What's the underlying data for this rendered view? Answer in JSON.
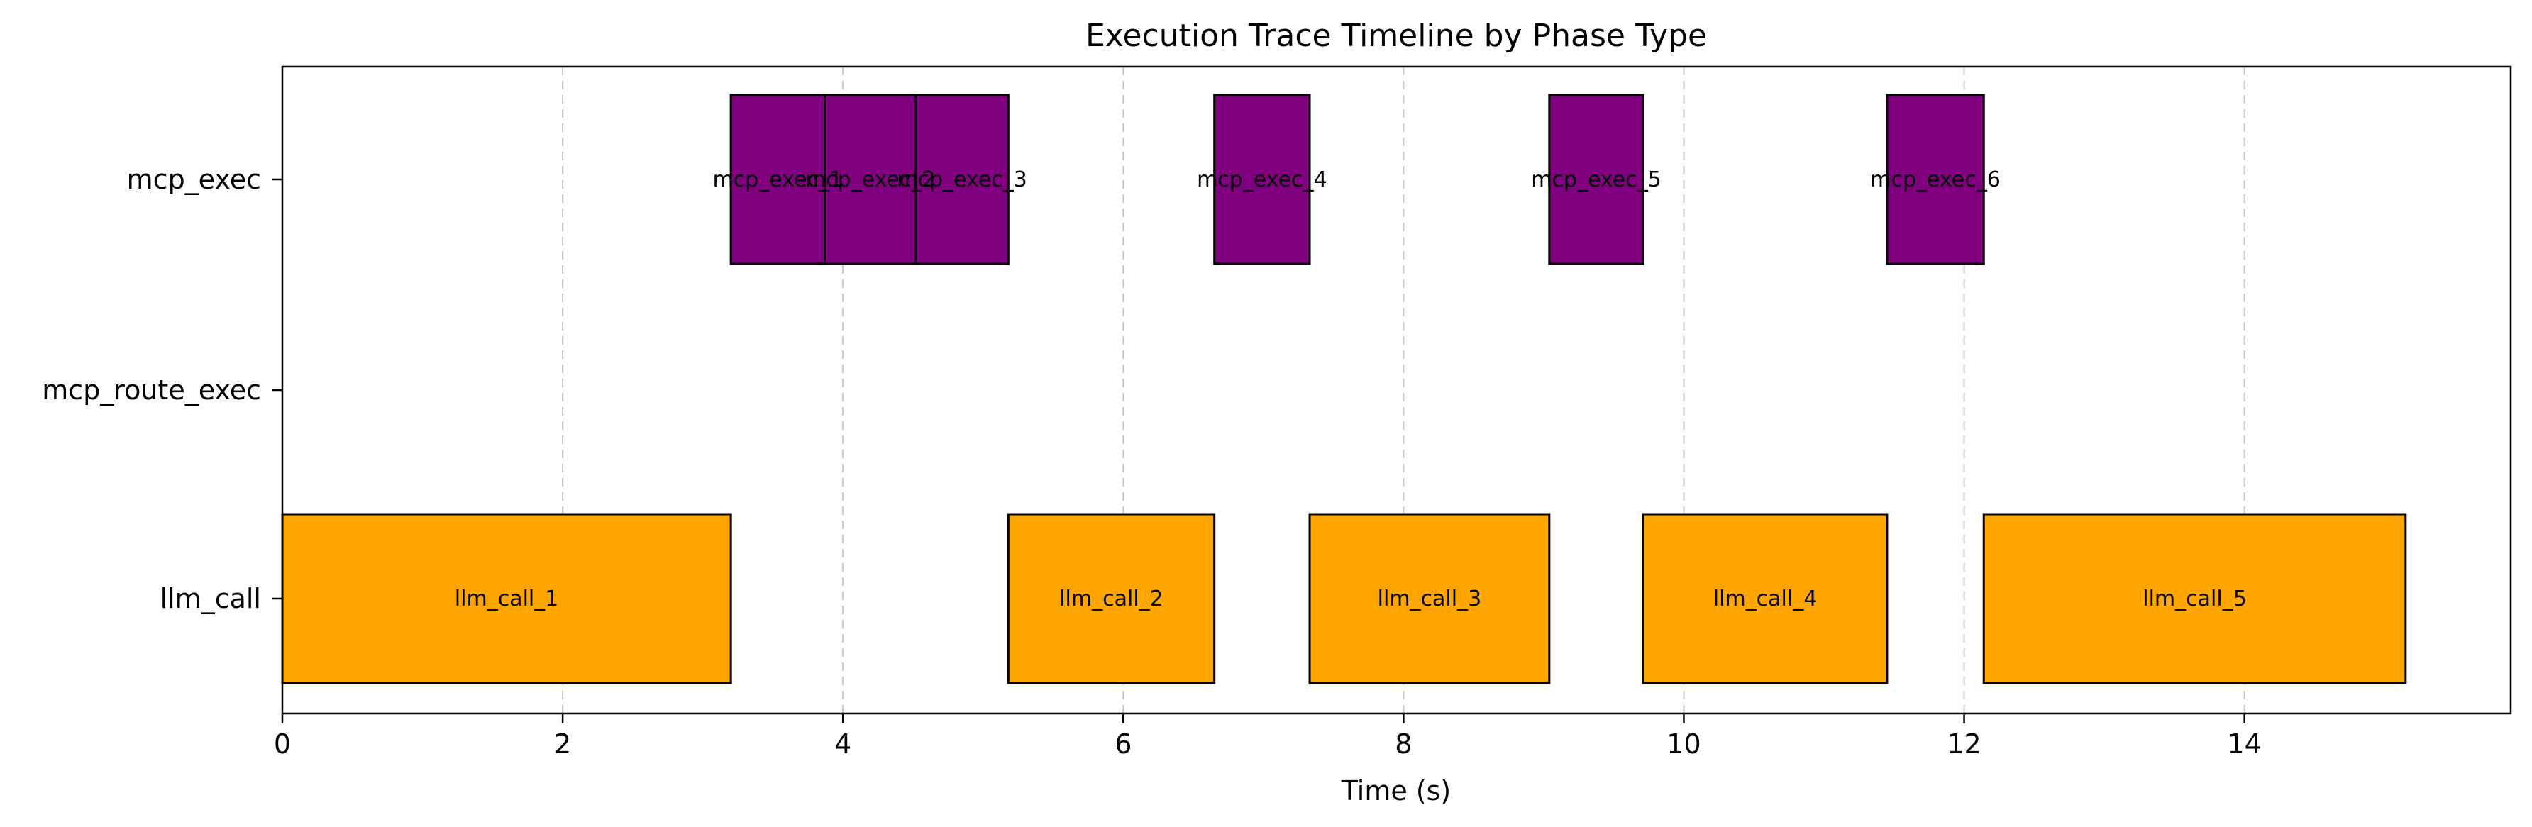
{
  "chart_data": {
    "type": "timeline",
    "title": "Execution Trace Timeline by Phase Type",
    "xlabel": "Time (s)",
    "ylabel": "",
    "xlim": [
      0,
      15.9
    ],
    "xticks": [
      0,
      2,
      4,
      6,
      8,
      10,
      12,
      14
    ],
    "xtick_labels": [
      "0",
      "2",
      "4",
      "6",
      "8",
      "10",
      "12",
      "14"
    ],
    "categories": [
      "mcp_exec",
      "mcp_route_exec",
      "llm_call"
    ],
    "grid": "x-dashed",
    "colors": {
      "mcp_exec": "#800080",
      "llm_call": "#ffa500",
      "edge": "#000000"
    },
    "bars": [
      {
        "label": "llm_call_1",
        "category": "llm_call",
        "start": 0.0,
        "end": 3.2
      },
      {
        "label": "mcp_exec_1",
        "category": "mcp_exec",
        "start": 3.2,
        "end": 3.87
      },
      {
        "label": "mcp_exec_2",
        "category": "mcp_exec",
        "start": 3.87,
        "end": 4.52
      },
      {
        "label": "mcp_exec_3",
        "category": "mcp_exec",
        "start": 4.52,
        "end": 5.18
      },
      {
        "label": "llm_call_2",
        "category": "llm_call",
        "start": 5.18,
        "end": 6.65
      },
      {
        "label": "mcp_exec_4",
        "category": "mcp_exec",
        "start": 6.65,
        "end": 7.33
      },
      {
        "label": "llm_call_3",
        "category": "llm_call",
        "start": 7.33,
        "end": 9.04
      },
      {
        "label": "mcp_exec_5",
        "category": "mcp_exec",
        "start": 9.04,
        "end": 9.71
      },
      {
        "label": "llm_call_4",
        "category": "llm_call",
        "start": 9.71,
        "end": 11.45
      },
      {
        "label": "mcp_exec_6",
        "category": "mcp_exec",
        "start": 11.45,
        "end": 12.14
      },
      {
        "label": "llm_call_5",
        "category": "llm_call",
        "start": 12.14,
        "end": 15.15
      }
    ]
  }
}
